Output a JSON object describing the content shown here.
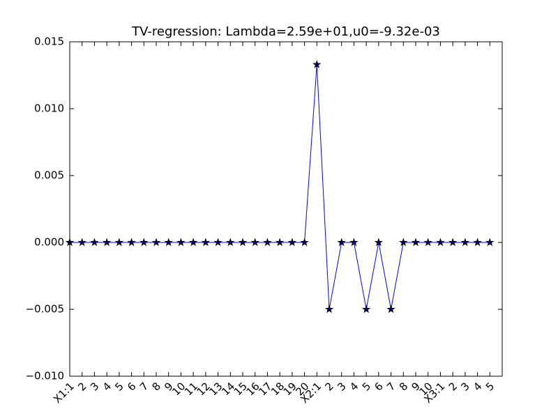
{
  "chart_data": {
    "type": "line",
    "title": "TV-regression: Lambda=2.59e+01,u0=-9.32e-03",
    "categories": [
      "X1:1",
      "2",
      "3",
      "4",
      "5",
      "6",
      "7",
      "8",
      "9",
      "10",
      "11",
      "12",
      "13",
      "14",
      "15",
      "16",
      "17",
      "18",
      "19",
      "20",
      "X2:1",
      "2",
      "3",
      "4",
      "5",
      "6",
      "7",
      "8",
      "9",
      "10",
      "X3:1",
      "2",
      "3",
      "4",
      "5"
    ],
    "series": [
      {
        "color": "#0000ff",
        "values": [
          0,
          0,
          0,
          0,
          0,
          0,
          0,
          0,
          0,
          0,
          0,
          0,
          0,
          0,
          0,
          0,
          0,
          0,
          0,
          0,
          0.0133,
          -0.005,
          0,
          0,
          -0.005,
          0,
          -0.005,
          0,
          0,
          0,
          0,
          0,
          0,
          0,
          0
        ]
      }
    ],
    "ylim": [
      -0.01,
      0.015
    ],
    "yticks": [
      {
        "value": -0.01,
        "label": "−0.010"
      },
      {
        "value": -0.005,
        "label": "−0.005"
      },
      {
        "value": 0,
        "label": "0.000"
      },
      0.005,
      {
        "value": 0.01,
        "label": "0.010"
      },
      0.015
    ]
  }
}
